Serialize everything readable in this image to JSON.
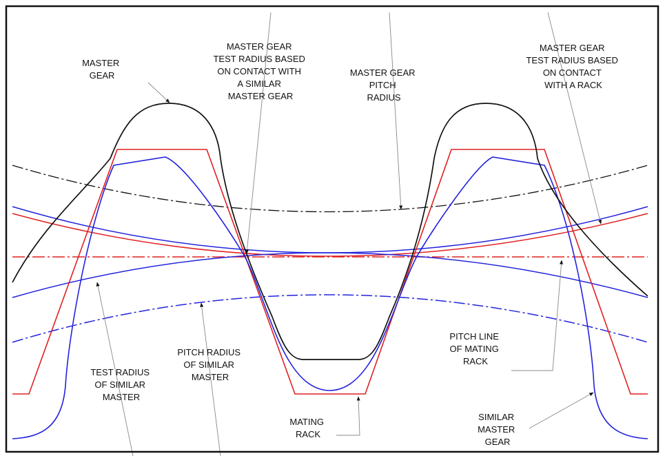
{
  "labels": [
    {
      "lines": [
        "MASTER",
        "GEAR"
      ]
    },
    {
      "lines": [
        "MASTER GEAR",
        "TEST RADIUS BASED",
        "ON CONTACT WITH",
        "A SIMILAR",
        "MASTER GEAR"
      ]
    },
    {
      "lines": [
        "MASTER GEAR",
        "PITCH",
        "RADIUS"
      ]
    },
    {
      "lines": [
        "MASTER GEAR",
        "TEST RADIUS BASED",
        "ON CONTACT",
        "WITH A RACK"
      ]
    },
    {
      "lines": [
        "TEST RADIUS",
        "OF SIMILAR",
        "MASTER"
      ]
    },
    {
      "lines": [
        "PITCH RADIUS",
        "OF SIMILAR",
        "MASTER"
      ]
    },
    {
      "lines": [
        "PITCH LINE",
        "OF MATING",
        "RACK"
      ]
    },
    {
      "lines": [
        "MATING",
        "RACK"
      ]
    },
    {
      "lines": [
        "SIMILAR",
        "MASTER",
        "GEAR"
      ]
    }
  ]
}
